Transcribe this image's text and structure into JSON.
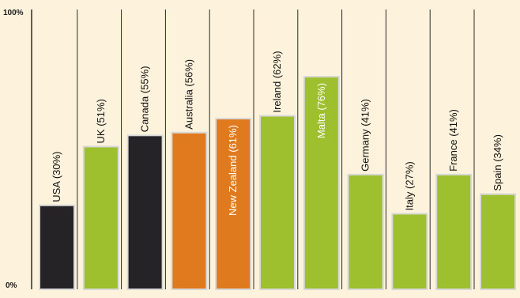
{
  "chart_data": {
    "type": "bar",
    "title": "",
    "xlabel": "",
    "ylabel": "",
    "ylim": [
      0,
      100
    ],
    "y_tick_labels": [
      "100%",
      "0%"
    ],
    "grid": "vertical separators",
    "categories": [
      "USA",
      "UK",
      "Canada",
      "Australia",
      "New Zealand",
      "Ireland",
      "Malta",
      "Germany",
      "Italy",
      "France",
      "Spain"
    ],
    "values": [
      30,
      51,
      55,
      56,
      61,
      62,
      76,
      41,
      27,
      41,
      34
    ],
    "data_labels": [
      "USA (30%)",
      "UK (51%)",
      "Canada (55%)",
      "Australia (56%)",
      "New Zealand (61%)",
      "Ireland (62%)",
      "Malta (76%)",
      "Germany (41%)",
      "Italy (27%)",
      "France (41%)",
      "Spain (34%)"
    ],
    "label_inside": [
      false,
      false,
      false,
      false,
      true,
      false,
      true,
      false,
      false,
      false,
      false
    ],
    "bar_colors": [
      "#252326",
      "#9ec02f",
      "#252326",
      "#e07a1f",
      "#e07a1f",
      "#9ec02f",
      "#9ec02f",
      "#9ec02f",
      "#9ec02f",
      "#9ec02f",
      "#9ec02f"
    ],
    "colors": {
      "background": "#fdf3dc",
      "black_bar": "#252326",
      "green_bar": "#9ec02f",
      "orange_bar": "#e07a1f",
      "bar_outline": "#d8d8d8",
      "separator": "#2a2a2a",
      "label_dark": "#111111",
      "label_light": "#ffffff"
    }
  }
}
